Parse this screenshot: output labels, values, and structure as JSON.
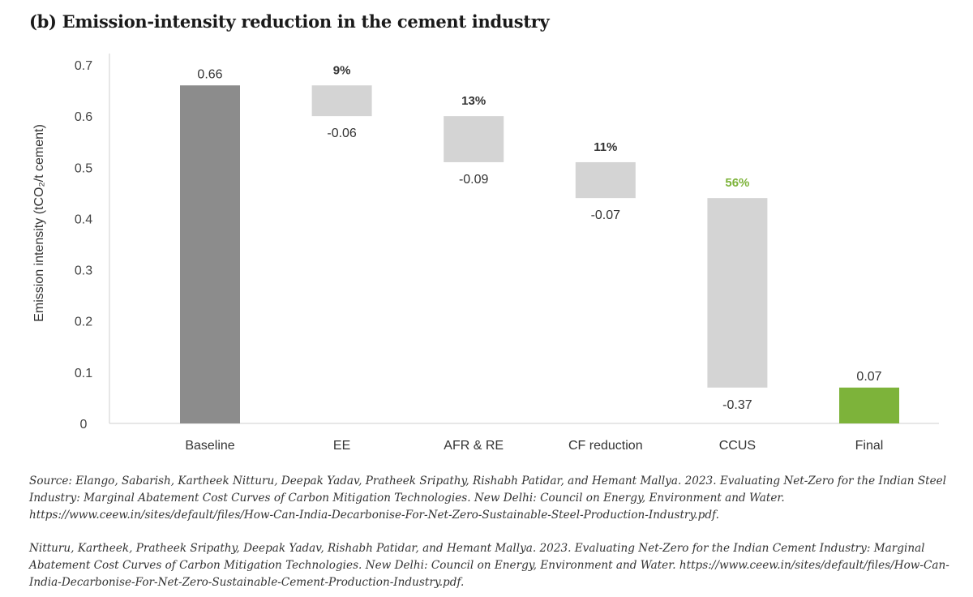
{
  "title": "(b) Emission-intensity reduction in the cement industry",
  "chart_data": {
    "type": "bar",
    "subtype": "waterfall",
    "ylabel": "Emission intensity (tCO₂/t cement)",
    "ylim": [
      0,
      0.7
    ],
    "yticks": [
      "0",
      "0.1",
      "0.2",
      "0.3",
      "0.4",
      "0.5",
      "0.6",
      "0.7"
    ],
    "grid": false,
    "categories": [
      "Baseline",
      "EE",
      "AFR & RE",
      "CF reduction",
      "CCUS",
      "Final"
    ],
    "bars": [
      {
        "category": "Baseline",
        "kind": "total",
        "start": 0,
        "end": 0.66,
        "value_label": "0.66",
        "pct_label": "",
        "color": "#8c8c8c"
      },
      {
        "category": "EE",
        "kind": "decrease",
        "start": 0.66,
        "end": 0.6,
        "value_label": "-0.06",
        "pct_label": "9%",
        "color": "#d4d4d4"
      },
      {
        "category": "AFR & RE",
        "kind": "decrease",
        "start": 0.6,
        "end": 0.51,
        "value_label": "-0.09",
        "pct_label": "13%",
        "color": "#d4d4d4"
      },
      {
        "category": "CF reduction",
        "kind": "decrease",
        "start": 0.51,
        "end": 0.44,
        "value_label": "-0.07",
        "pct_label": "11%",
        "color": "#d4d4d4"
      },
      {
        "category": "CCUS",
        "kind": "decrease",
        "start": 0.44,
        "end": 0.07,
        "value_label": "-0.37",
        "pct_label": "56%",
        "color": "#d4d4d4",
        "pct_color": "#7db33a"
      },
      {
        "category": "Final",
        "kind": "total",
        "start": 0,
        "end": 0.07,
        "value_label": "0.07",
        "pct_label": "",
        "color": "#7db33a"
      }
    ]
  },
  "sources": [
    "Source: Elango, Sabarish, Kartheek Nitturu, Deepak Yadav, Pratheek Sripathy, Rishabh Patidar, and Hemant Mallya. 2023. Evaluating Net-Zero for the Indian Steel Industry: Marginal Abatement Cost Curves of Carbon Mitigation Technologies. New Delhi: Council on Energy, Environment and Water. https://www.ceew.in/sites/default/files/How-Can-India-Decarbonise-For-Net-Zero-Sustainable-Steel-Production-Industry.pdf.",
    "Nitturu, Kartheek, Pratheek Sripathy, Deepak Yadav, Rishabh Patidar, and Hemant Mallya. 2023. Evaluating Net-Zero for the Indian Cement Industry: Marginal Abatement Cost Curves of Carbon Mitigation Technologies. New Delhi: Council on Energy, Environment and Water. https://www.ceew.in/sites/default/files/How-Can-India-Decarbonise-For-Net-Zero-Sustainable-Cement-Production-Industry.pdf."
  ]
}
